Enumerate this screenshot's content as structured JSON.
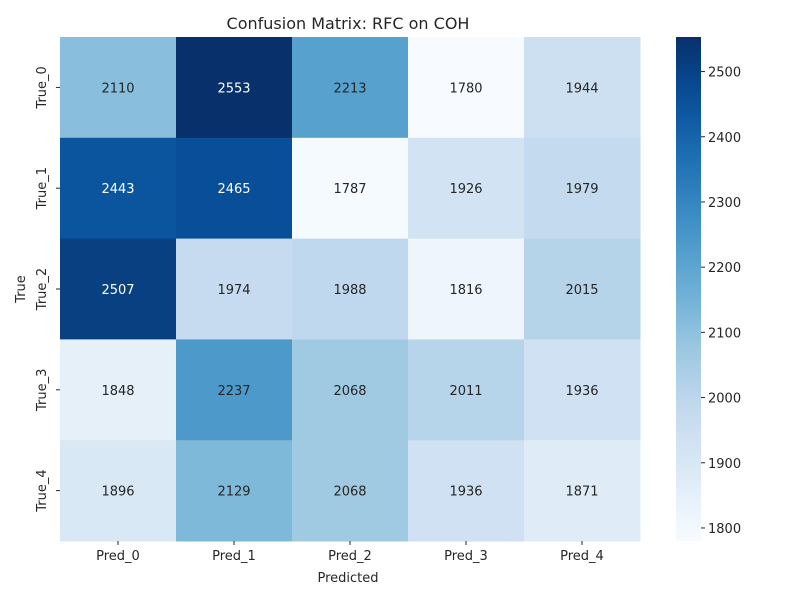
{
  "chart_data": {
    "type": "heatmap",
    "title": "Confusion Matrix: RFC on COH",
    "xlabel": "Predicted",
    "ylabel": "True",
    "x_categories": [
      "Pred_0",
      "Pred_1",
      "Pred_2",
      "Pred_3",
      "Pred_4"
    ],
    "y_categories": [
      "True_0",
      "True_1",
      "True_2",
      "True_3",
      "True_4"
    ],
    "values": [
      [
        2110,
        2553,
        2213,
        1780,
        1944
      ],
      [
        2443,
        2465,
        1787,
        1926,
        1979
      ],
      [
        2507,
        1974,
        1988,
        1816,
        2015
      ],
      [
        1848,
        2237,
        2068,
        2011,
        1936
      ],
      [
        1896,
        2129,
        2068,
        1936,
        1871
      ]
    ],
    "colormap": "Blues",
    "color_range": [
      1780,
      2553
    ],
    "colorbar_ticks": [
      1800,
      1900,
      2000,
      2100,
      2200,
      2300,
      2400,
      2500
    ],
    "annotations": true,
    "grid": false
  }
}
